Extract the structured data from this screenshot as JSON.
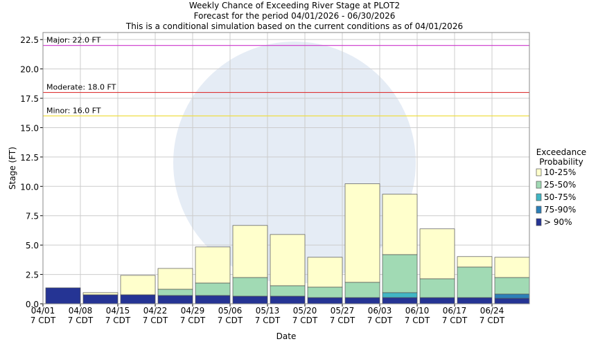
{
  "chart_data": {
    "type": "stacked_bar",
    "title": [
      "Weekly Chance of Exceeding River Stage at PLOT2",
      "Forecast for the period 04/01/2026 - 06/30/2026",
      "This is a conditional simulation based on the current conditions as of 04/01/2026"
    ],
    "x_label": "Date",
    "y_label": "Stage (FT)",
    "categories": [
      "04/01\n7 CDT",
      "04/08\n7 CDT",
      "04/15\n7 CDT",
      "04/22\n7 CDT",
      "04/29\n7 CDT",
      "05/06\n7 CDT",
      "05/13\n7 CDT",
      "05/20\n7 CDT",
      "05/27\n7 CDT",
      "06/03\n7 CDT",
      "06/10\n7 CDT",
      "06/17\n7 CDT",
      "06/24\n7 CDT"
    ],
    "legend_title": [
      "Exceedance",
      "Probability"
    ],
    "series": [
      {
        "name": "10-25%",
        "color": "#ffffcc",
        "values": [
          0,
          0.18,
          1.65,
          1.77,
          3.07,
          4.43,
          4.36,
          2.54,
          8.39,
          5.14,
          4.25,
          0.89,
          1.72
        ]
      },
      {
        "name": "25-50%",
        "color": "#a1dab4",
        "values": [
          0,
          0,
          0,
          0.53,
          1.06,
          1.59,
          0.89,
          0.89,
          1.3,
          3.24,
          1.6,
          2.6,
          1.41
        ]
      },
      {
        "name": "50-75%",
        "color": "#41b6c4",
        "values": [
          0,
          0,
          0,
          0,
          0,
          0,
          0,
          0,
          0,
          0.42,
          0,
          0,
          0
        ]
      },
      {
        "name": "75-90%",
        "color": "#2c7fb8",
        "values": [
          0,
          0,
          0,
          0,
          0,
          0,
          0,
          0,
          0,
          0,
          0,
          0,
          0.36
        ]
      },
      {
        "name": "> 90%",
        "color": "#253494",
        "values": [
          1.36,
          0.77,
          0.77,
          0.71,
          0.71,
          0.65,
          0.65,
          0.53,
          0.53,
          0.53,
          0.53,
          0.53,
          0.47
        ]
      }
    ],
    "thresholds": [
      {
        "label": "Major: 22.0 FT",
        "value": 22.0,
        "color": "#cc33cc"
      },
      {
        "label": "Moderate: 18.0 FT",
        "value": 18.0,
        "color": "#dd3333"
      },
      {
        "label": "Minor: 16.0 FT",
        "value": 16.0,
        "color": "#eedd44"
      }
    ],
    "ylim": [
      0,
      23.1
    ],
    "yticks": [
      {
        "value": 0,
        "label": "0.0"
      },
      2.5,
      {
        "value": 5,
        "label": "5.0"
      },
      7.5,
      {
        "value": 10,
        "label": "10.0"
      },
      12.5,
      {
        "value": 15,
        "label": "15.0"
      },
      17.5,
      {
        "value": 20,
        "label": "20.0"
      },
      22.5
    ],
    "grid": true
  }
}
